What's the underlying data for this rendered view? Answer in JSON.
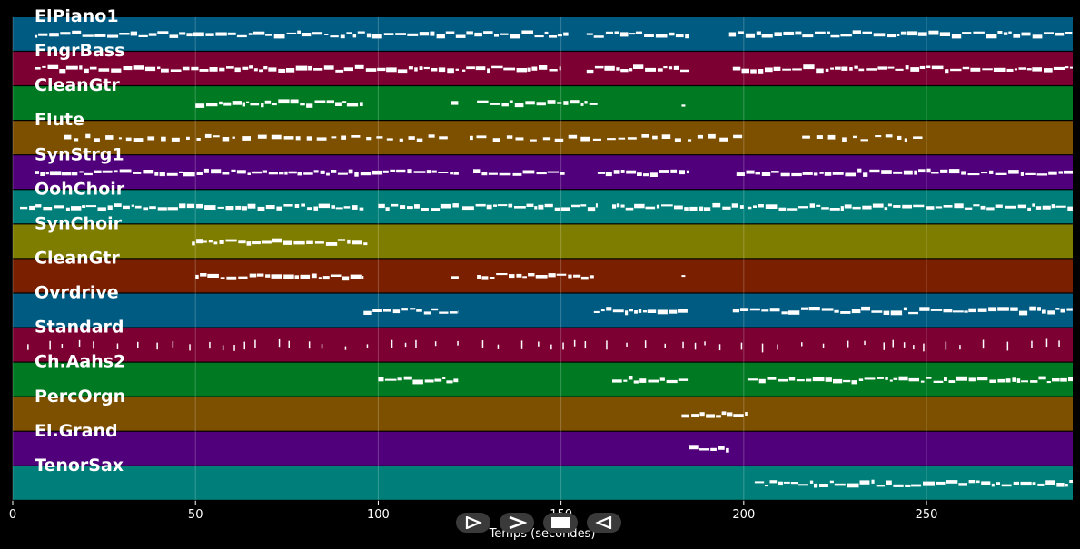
{
  "chart_data": {
    "type": "piano-roll",
    "title": "",
    "xlabel": "Temps (secondes)",
    "ylabel": "",
    "xlim": [
      0,
      290
    ],
    "x_ticks": [
      0,
      50,
      100,
      150,
      200,
      250
    ],
    "grid": true,
    "tracks": [
      {
        "name": "ElPiano1",
        "color": "#005b82",
        "segments": [
          [
            6,
            152
          ],
          [
            157,
            185
          ],
          [
            196,
            290
          ]
        ]
      },
      {
        "name": "FngrBass",
        "color": "#7c0031",
        "segments": [
          [
            6,
            122
          ],
          [
            123,
            150
          ],
          [
            157,
            185
          ],
          [
            197,
            290
          ]
        ]
      },
      {
        "name": "CleanGtr",
        "color": "#007a22",
        "segments": [
          [
            50,
            96
          ],
          [
            120,
            122
          ],
          [
            127,
            160
          ],
          [
            183,
            184
          ]
        ]
      },
      {
        "name": "Flute",
        "color": "#7d5000",
        "segments": [
          [
            14,
            119
          ],
          [
            125,
            200
          ],
          [
            216,
            250
          ]
        ]
      },
      {
        "name": "SynStrg1",
        "color": "#51007c",
        "segments": [
          [
            6,
            122
          ],
          [
            126,
            151
          ],
          [
            160,
            185
          ],
          [
            198,
            290
          ]
        ]
      },
      {
        "name": "OohChoir",
        "color": "#007f7a",
        "segments": [
          [
            2,
            96
          ],
          [
            100,
            122
          ],
          [
            123,
            160
          ],
          [
            164,
            200
          ],
          [
            201,
            290
          ]
        ]
      },
      {
        "name": "SynChoir",
        "color": "#7f7d00",
        "segments": [
          [
            49,
            97
          ]
        ]
      },
      {
        "name": "CleanGtr",
        "color": "#7a1f00",
        "segments": [
          [
            50,
            96
          ],
          [
            120,
            122
          ],
          [
            127,
            159
          ],
          [
            183,
            184
          ]
        ]
      },
      {
        "name": "Ovrdrive",
        "color": "#005b82",
        "segments": [
          [
            96,
            122
          ],
          [
            159,
            185
          ],
          [
            197,
            290
          ]
        ]
      },
      {
        "name": "Standard",
        "color": "#7c0031",
        "segments": [
          [
            4,
            290
          ]
        ]
      },
      {
        "name": "Ch.Aahs2",
        "color": "#007a22",
        "segments": [
          [
            100,
            122
          ],
          [
            164,
            185
          ],
          [
            201,
            290
          ]
        ]
      },
      {
        "name": "PercOrgn",
        "color": "#7d5000",
        "segments": [
          [
            183,
            201
          ]
        ]
      },
      {
        "name": "El.Grand",
        "color": "#51007c",
        "segments": [
          [
            185,
            196
          ]
        ]
      },
      {
        "name": "TenorSax",
        "color": "#007f7a",
        "segments": [
          [
            203,
            290
          ]
        ]
      }
    ]
  },
  "controls": {
    "play_icon": "play-icon",
    "next_icon": "next-icon",
    "stop_icon": "stop-icon",
    "rewind_icon": "rewind-icon"
  }
}
